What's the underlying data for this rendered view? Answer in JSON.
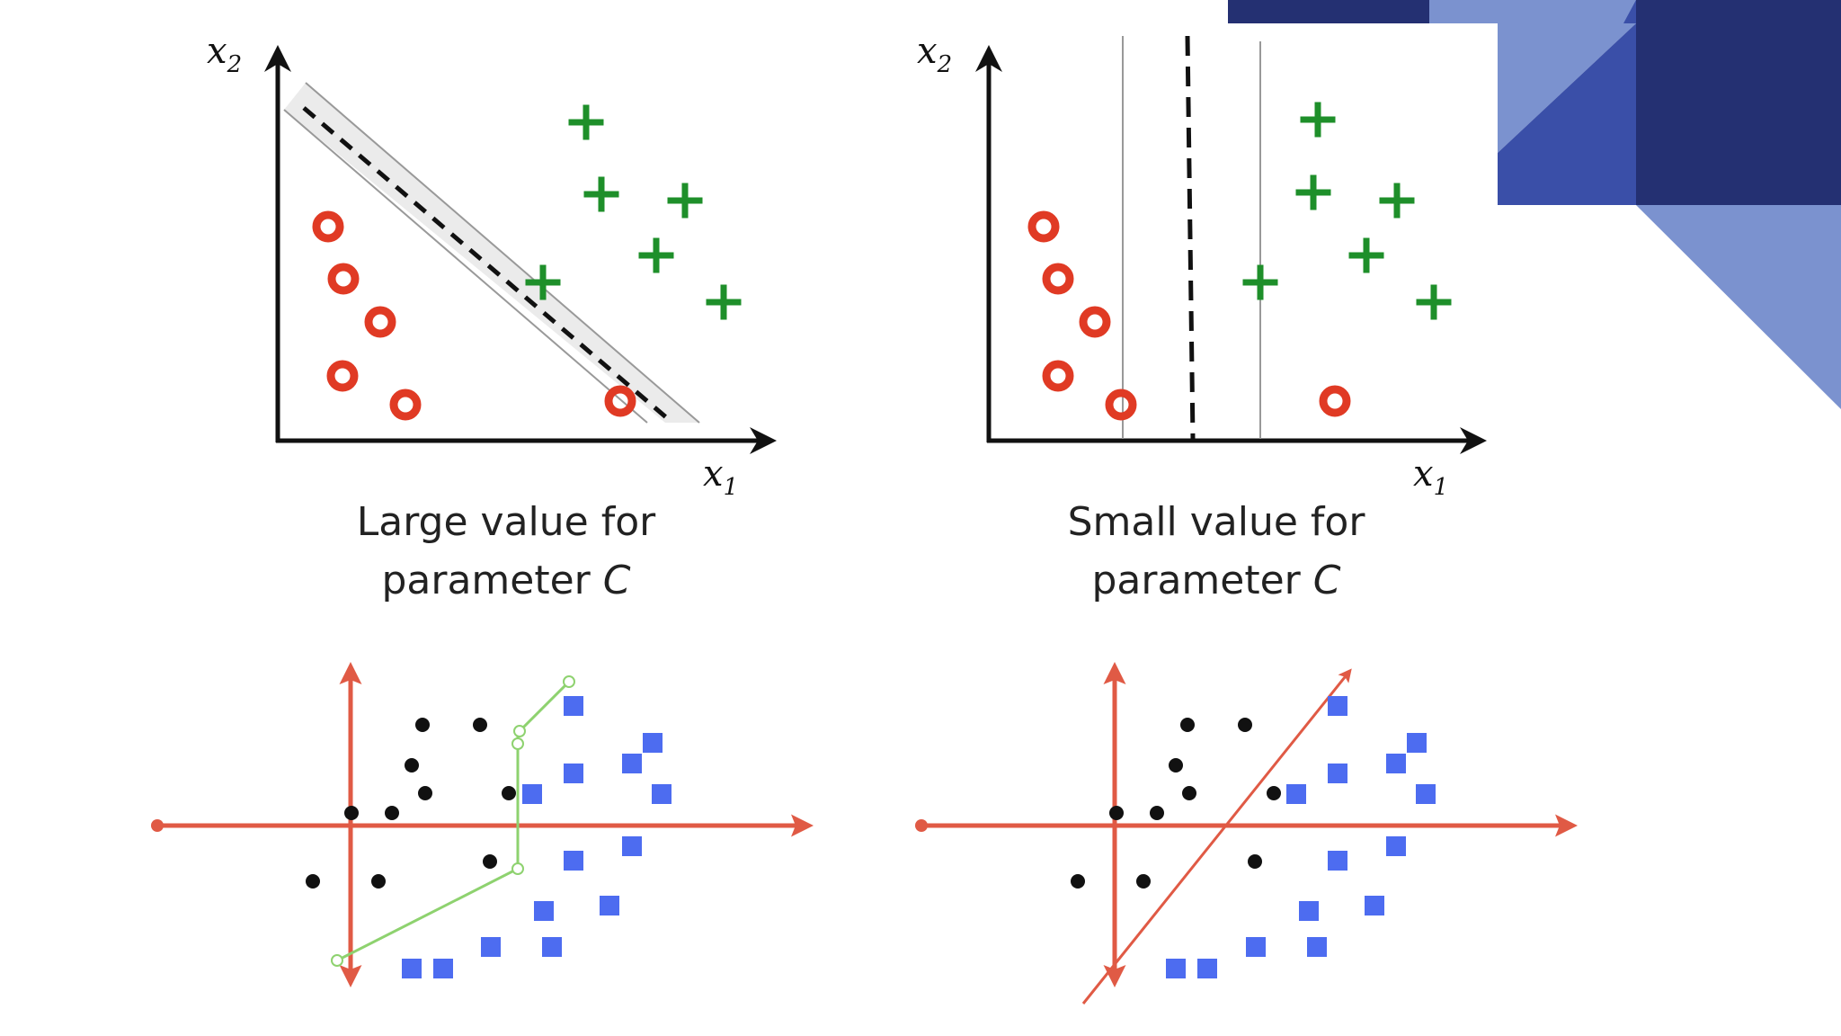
{
  "colors": {
    "deco_dark": "#243072",
    "deco_mid": "#3a4fa8",
    "deco_light": "#7b92cf",
    "circle_red": "#e03a24",
    "plus_green": "#1e8f2a",
    "axis_red": "#e05a45",
    "boundary_green": "#8ed26f",
    "square_blue": "#4d6cf0",
    "dot_black": "#111111"
  },
  "panels": {
    "large_c": {
      "x_label": "x",
      "x_sub": "1",
      "y_label": "x",
      "y_sub": "2",
      "caption_line1": "Large value for",
      "caption_line2": "parameter ",
      "caption_var": "C"
    },
    "small_c": {
      "x_label": "x",
      "x_sub": "1",
      "y_label": "x",
      "y_sub": "2",
      "caption_line1": "Small value for",
      "caption_line2": "parameter ",
      "caption_var": "C"
    }
  },
  "icons": {
    "class_a_marker": "red-ring-icon",
    "class_b_marker": "green-plus-icon",
    "dot_marker": "black-dot-icon",
    "square_marker": "blue-square-icon"
  }
}
